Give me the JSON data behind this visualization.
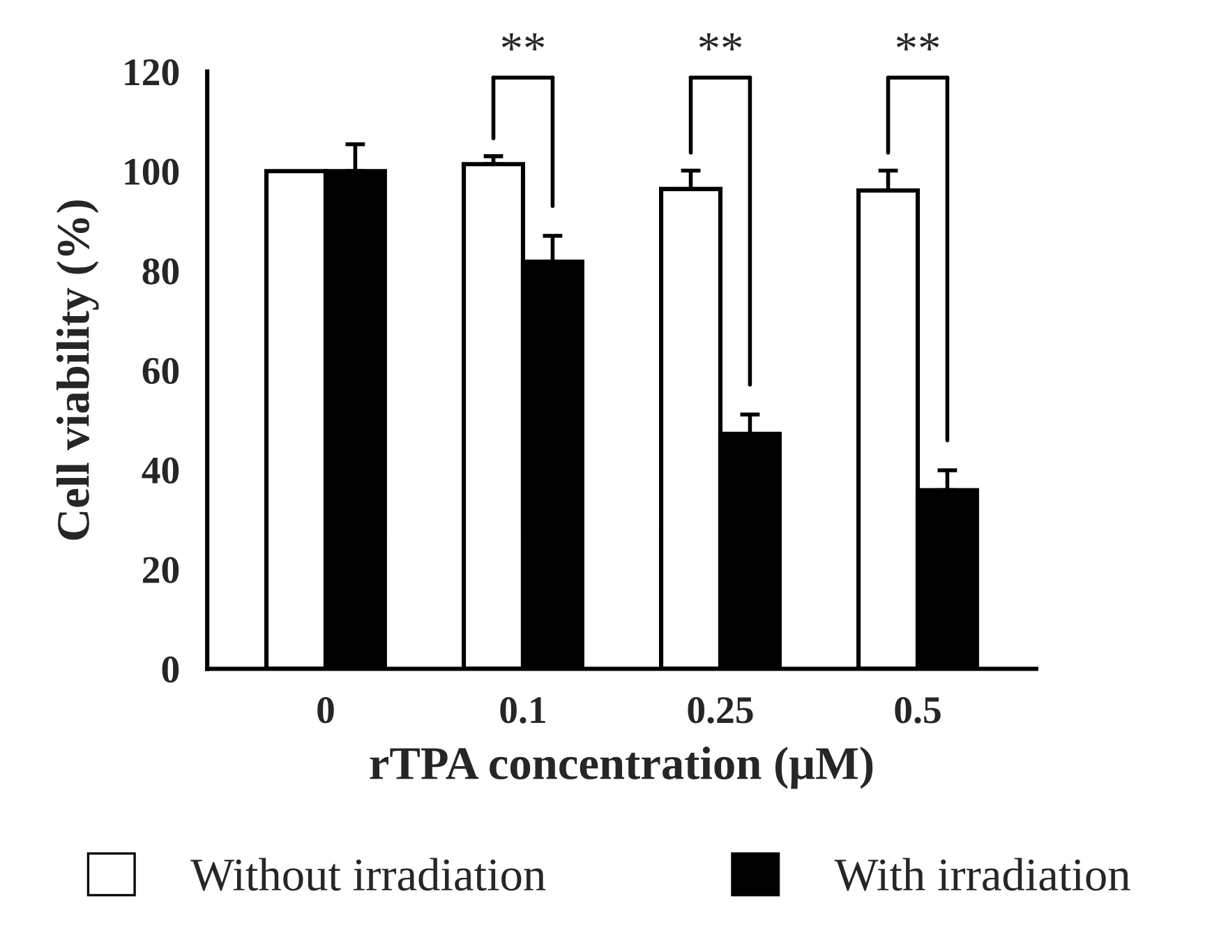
{
  "chart_data": {
    "type": "bar",
    "xlabel": "rTPA concentration (μM)",
    "ylabel": "Cell viability (%)",
    "categories": [
      "0",
      "0.1",
      "0.25",
      "0.5"
    ],
    "series": [
      {
        "name": "Without irradiation",
        "color": "#ffffff",
        "values": [
          100,
          101.4,
          96.4,
          96.1
        ],
        "errors": [
          null,
          1.6,
          3.7,
          4.0
        ]
      },
      {
        "name": "With irradiation",
        "color": "#000000",
        "values": [
          100,
          81.8,
          47.2,
          35.9
        ],
        "errors": [
          5.4,
          5.2,
          3.9,
          4.0
        ]
      }
    ],
    "ylim": [
      0,
      120
    ],
    "yticks": [
      0,
      20,
      40,
      60,
      80,
      100,
      120
    ],
    "grid": false,
    "legend": "bottom",
    "annotations": [
      "**",
      "**",
      "**"
    ]
  }
}
